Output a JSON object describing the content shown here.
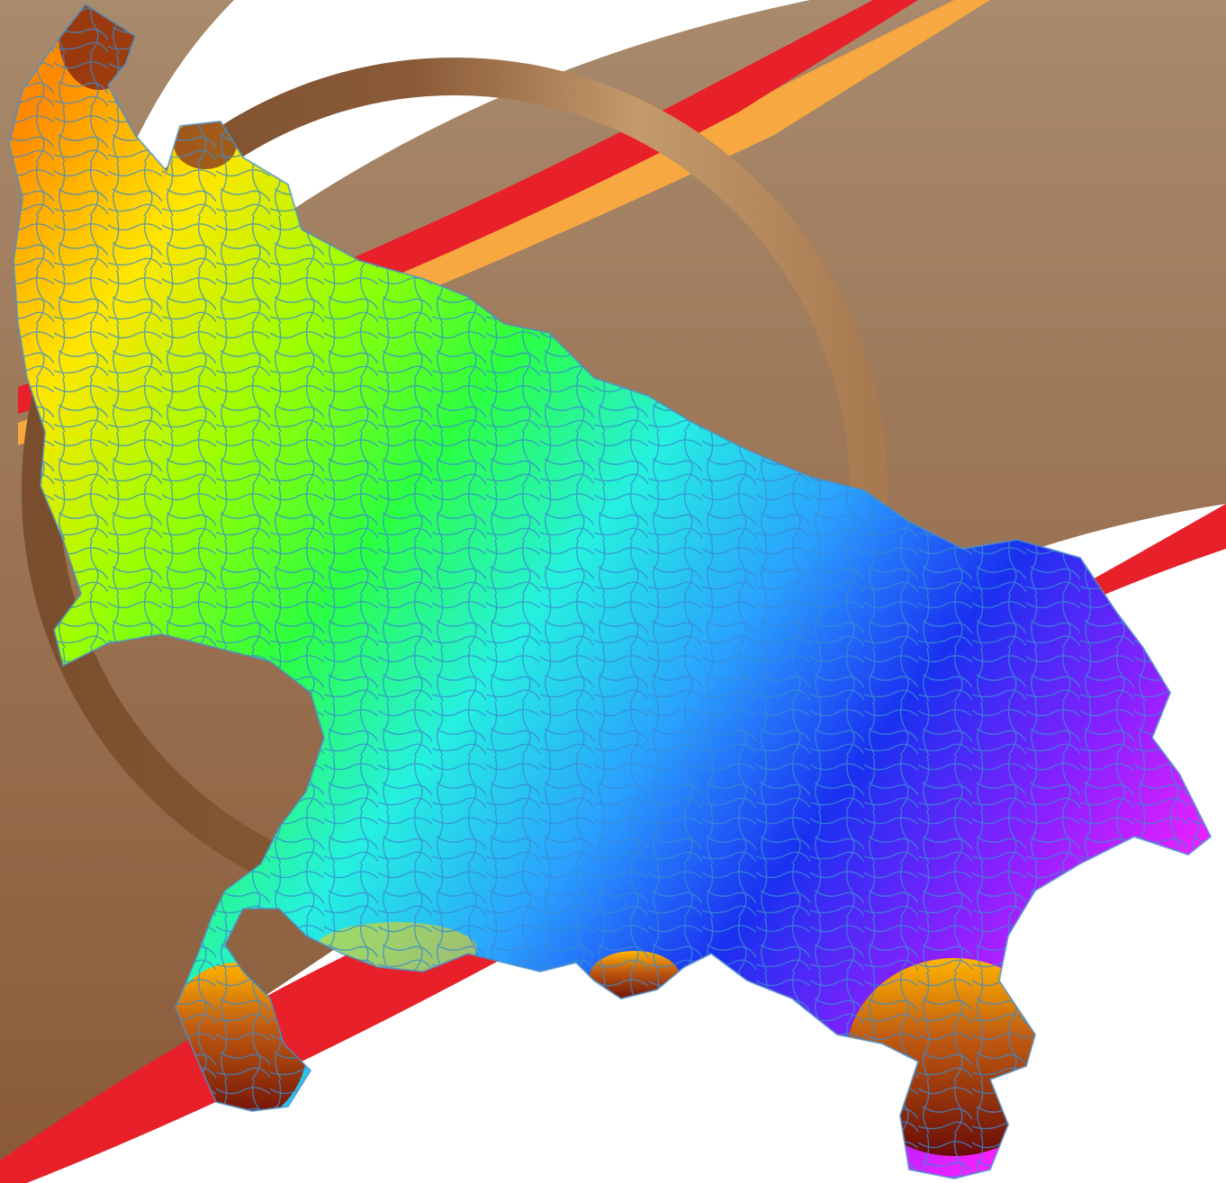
{
  "image": {
    "kind": "elevation-and-drainage-map-illustration",
    "has_visible_text": false
  },
  "background": {
    "page_color": "#ffffff",
    "band_brown_light": "#a88a6c",
    "band_brown_dark": "#8a5a38",
    "ring_light": "#c49a6c",
    "ring_dark": "#7a4e2c",
    "stripe_red": "#e8202a",
    "stripe_orange": "#f8a840"
  },
  "map": {
    "region": "state-outline",
    "elevation_palette": [
      "#8a1a10",
      "#ff8a00",
      "#ffe600",
      "#9cff00",
      "#2bff40",
      "#26f0e0",
      "#2aa0ff",
      "#1a30f0",
      "#8a20ff",
      "#ff20ff"
    ],
    "river_color": "#3a8ad0"
  }
}
